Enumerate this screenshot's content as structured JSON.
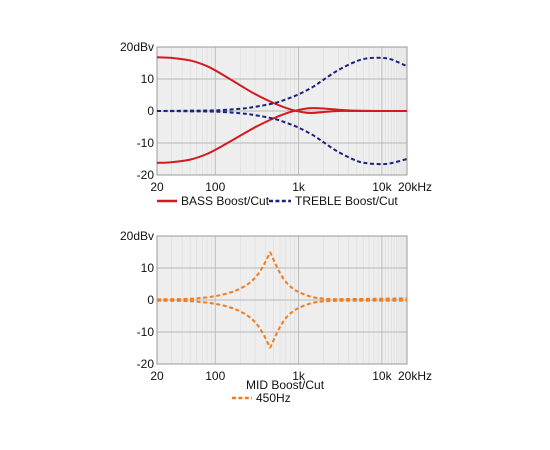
{
  "colors": {
    "bass": "#d4191f",
    "treble": "#1a237e",
    "mid": "#f07c1e",
    "plot_bg": "#eeeeee",
    "grid": "#cfcfcf"
  },
  "chart_data": [
    {
      "type": "line",
      "xscale": "log",
      "xlim": [
        20,
        20000
      ],
      "ylim": [
        -20,
        20
      ],
      "grid": true,
      "y_ticks": [
        "20dBv",
        "10",
        "0",
        "-10",
        "-20"
      ],
      "x_ticks": [
        "20",
        "100",
        "1k",
        "10k",
        "20kHz"
      ],
      "legend_position": "bottom",
      "legend": [
        "BASS Boost/Cut",
        "TREBLE Boost/Cut"
      ],
      "series": [
        {
          "name": "BASS Boost/Cut",
          "style": "solid",
          "color": "#d4191f",
          "x": [
            20,
            30,
            50,
            80,
            120,
            200,
            300,
            500,
            800,
            1200,
            1500,
            2000,
            3000,
            5000,
            10000,
            20000
          ],
          "y": [
            16.8,
            16.6,
            15.8,
            14.0,
            11.5,
            8.0,
            5.3,
            2.5,
            0.5,
            -0.5,
            -0.6,
            -0.3,
            0,
            0,
            0,
            0
          ]
        },
        {
          "style": "solid",
          "color": "#d4191f",
          "x": [
            20,
            30,
            50,
            80,
            120,
            200,
            300,
            500,
            800,
            1200,
            1500,
            2000,
            3000,
            5000,
            10000,
            20000
          ],
          "y": [
            -16.2,
            -16.0,
            -15.2,
            -13.4,
            -11.0,
            -7.7,
            -5.1,
            -2.3,
            -0.3,
            0.7,
            0.9,
            0.8,
            0.4,
            0.1,
            0,
            0
          ]
        },
        {
          "name": "TREBLE Boost/Cut",
          "style": "dashed",
          "color": "#1a237e",
          "x": [
            20,
            50,
            100,
            200,
            300,
            500,
            700,
            1000,
            1500,
            2000,
            3000,
            5000,
            7000,
            10000,
            13000,
            20000
          ],
          "y": [
            0,
            0.1,
            0.2,
            0.7,
            1.3,
            2.4,
            3.6,
            5.2,
            7.6,
            9.8,
            12.8,
            15.6,
            16.5,
            16.6,
            16.1,
            14.0
          ]
        },
        {
          "style": "dashed",
          "color": "#1a237e",
          "x": [
            20,
            50,
            100,
            200,
            300,
            500,
            700,
            1000,
            1500,
            2000,
            3000,
            5000,
            7000,
            10000,
            13000,
            20000
          ],
          "y": [
            0,
            -0.1,
            -0.2,
            -0.7,
            -1.3,
            -2.4,
            -3.6,
            -5.2,
            -7.6,
            -9.8,
            -12.8,
            -15.6,
            -16.4,
            -16.6,
            -16.3,
            -15.0
          ]
        }
      ]
    },
    {
      "type": "line",
      "xscale": "log",
      "xlim": [
        20,
        20000
      ],
      "ylim": [
        -20,
        20
      ],
      "grid": true,
      "title": "MID Boost/Cut",
      "y_ticks": [
        "20dBv",
        "10",
        "0",
        "-10",
        "-20"
      ],
      "x_ticks": [
        "20",
        "100",
        "1k",
        "10k",
        "20kHz"
      ],
      "legend_position": "bottom",
      "legend": [
        "450Hz"
      ],
      "series": [
        {
          "name": "450Hz",
          "style": "dashed",
          "color": "#f07c1e",
          "x": [
            20,
            40,
            60,
            100,
            150,
            200,
            260,
            320,
            380,
            430,
            450,
            470,
            520,
            600,
            700,
            850,
            1000,
            1300,
            1700,
            2500,
            4000,
            10000,
            20000
          ],
          "y": [
            0.2,
            0.3,
            0.5,
            1.2,
            2.3,
            3.6,
            5.4,
            7.8,
            10.8,
            13.6,
            14.8,
            14.2,
            11.6,
            8.4,
            5.7,
            3.6,
            2.5,
            1.3,
            0.6,
            0.3,
            0.3,
            0.4,
            0.5
          ]
        },
        {
          "style": "dashed",
          "color": "#f07c1e",
          "x": [
            20,
            40,
            60,
            100,
            150,
            200,
            260,
            320,
            380,
            430,
            450,
            470,
            520,
            600,
            700,
            850,
            1000,
            1300,
            1700,
            2500,
            4000,
            10000,
            20000
          ],
          "y": [
            -0.2,
            -0.3,
            -0.5,
            -1.2,
            -2.3,
            -3.6,
            -5.4,
            -7.8,
            -10.8,
            -13.6,
            -14.8,
            -14.2,
            -11.6,
            -8.4,
            -5.7,
            -3.6,
            -2.5,
            -1.3,
            -0.6,
            -0.3,
            -0.2,
            -0.2,
            -0.2
          ]
        }
      ]
    }
  ]
}
